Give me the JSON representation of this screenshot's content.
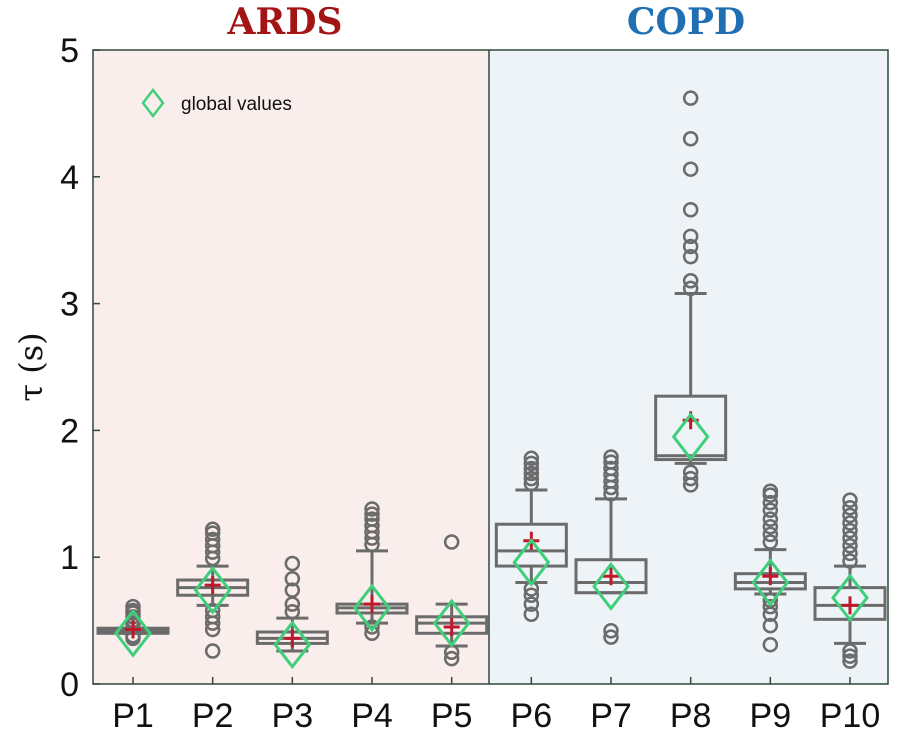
{
  "chart_data": {
    "type": "box",
    "ylabel": "τ (s)",
    "ylim": [
      0,
      5
    ],
    "yticks": [
      "0",
      "1",
      "2",
      "3",
      "4",
      "5"
    ],
    "categories": [
      "P1",
      "P2",
      "P3",
      "P4",
      "P5",
      "P6",
      "P7",
      "P8",
      "P9",
      "P10"
    ],
    "groups": [
      {
        "name": "ARDS",
        "color": "#a31515",
        "background": "#f9eeec",
        "categories": [
          "P1",
          "P2",
          "P3",
          "P4",
          "P5"
        ]
      },
      {
        "name": "COPD",
        "color": "#1f6fb2",
        "background": "#eef3f8",
        "categories": [
          "P6",
          "P7",
          "P8",
          "P9",
          "P10"
        ]
      }
    ],
    "legend": {
      "label": "global values",
      "placement": "top-left"
    },
    "colors": {
      "box": "#6b6b6b",
      "mean": "#c0182a",
      "global": "#3fcf7a"
    },
    "boxes": [
      {
        "category": "P1",
        "whisker_low": 0.4,
        "q1": 0.4,
        "median": 0.42,
        "q3": 0.44,
        "whisker_high": 0.44,
        "mean": 0.43,
        "global": 0.4,
        "outliers": [
          0.47,
          0.5,
          0.53,
          0.56,
          0.58,
          0.61,
          0.36,
          0.38
        ]
      },
      {
        "category": "P2",
        "whisker_low": 0.62,
        "q1": 0.7,
        "median": 0.76,
        "q3": 0.82,
        "whisker_high": 0.93,
        "mean": 0.78,
        "global": 0.74,
        "outliers": [
          0.26,
          0.43,
          0.48,
          0.53,
          0.58,
          0.99,
          1.04,
          1.09,
          1.14,
          1.19,
          1.22
        ]
      },
      {
        "category": "P3",
        "whisker_low": 0.26,
        "q1": 0.32,
        "median": 0.36,
        "q3": 0.41,
        "whisker_high": 0.52,
        "mean": 0.36,
        "global": 0.31,
        "outliers": [
          0.57,
          0.63,
          0.74,
          0.83,
          0.95
        ]
      },
      {
        "category": "P4",
        "whisker_low": 0.48,
        "q1": 0.56,
        "median": 0.6,
        "q3": 0.63,
        "whisker_high": 1.05,
        "mean": 0.63,
        "global": 0.6,
        "outliers": [
          0.4,
          0.45,
          1.1,
          1.15,
          1.2,
          1.25,
          1.3,
          1.34,
          1.38
        ]
      },
      {
        "category": "P5",
        "whisker_low": 0.3,
        "q1": 0.4,
        "median": 0.48,
        "q3": 0.53,
        "whisker_high": 0.63,
        "mean": 0.45,
        "global": 0.48,
        "outliers": [
          0.2,
          0.25,
          1.12
        ]
      },
      {
        "category": "P6",
        "whisker_low": 0.8,
        "q1": 0.93,
        "median": 1.05,
        "q3": 1.26,
        "whisker_high": 1.53,
        "mean": 1.13,
        "global": 0.96,
        "outliers": [
          0.55,
          0.63,
          0.7,
          0.75,
          1.58,
          1.62,
          1.66,
          1.7,
          1.74,
          1.78
        ]
      },
      {
        "category": "P7",
        "whisker_low": 0.72,
        "q1": 0.72,
        "median": 0.8,
        "q3": 0.98,
        "whisker_high": 1.46,
        "mean": 0.85,
        "global": 0.77,
        "outliers": [
          0.37,
          0.42,
          1.5,
          1.55,
          1.6,
          1.65,
          1.7,
          1.75,
          1.79
        ]
      },
      {
        "category": "P8",
        "whisker_low": 1.74,
        "q1": 1.77,
        "median": 1.8,
        "q3": 2.27,
        "whisker_high": 3.08,
        "mean": 2.08,
        "global": 1.95,
        "outliers": [
          1.57,
          1.62,
          1.67,
          3.12,
          3.18,
          3.37,
          3.45,
          3.53,
          3.74,
          4.06,
          4.3,
          4.62
        ]
      },
      {
        "category": "P9",
        "whisker_low": 0.71,
        "q1": 0.75,
        "median": 0.8,
        "q3": 0.87,
        "whisker_high": 1.06,
        "mean": 0.85,
        "global": 0.8,
        "outliers": [
          0.31,
          0.46,
          0.55,
          0.61,
          0.66,
          1.12,
          1.18,
          1.24,
          1.3,
          1.37,
          1.43,
          1.49,
          1.52
        ]
      },
      {
        "category": "P10",
        "whisker_low": 0.32,
        "q1": 0.51,
        "median": 0.62,
        "q3": 0.76,
        "whisker_high": 0.93,
        "mean": 0.62,
        "global": 0.68,
        "outliers": [
          0.18,
          0.22,
          0.26,
          0.97,
          1.03,
          1.09,
          1.15,
          1.21,
          1.27,
          1.33,
          1.39,
          1.45
        ]
      }
    ]
  }
}
